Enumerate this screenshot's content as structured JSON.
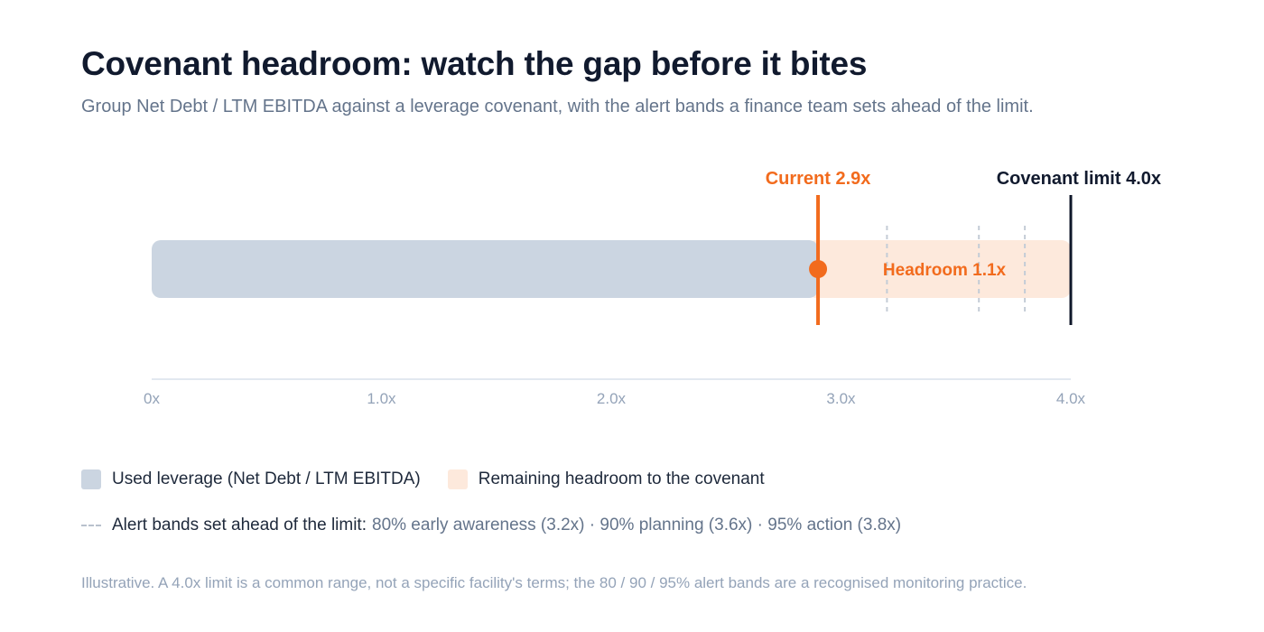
{
  "title": "Covenant headroom: watch the gap before it bites",
  "subtitle": "Group Net Debt / LTM EBITDA against a leverage covenant, with the alert bands a finance team sets ahead of the limit.",
  "chart_data": {
    "type": "bar",
    "orientation": "horizontal",
    "xlim": [
      0,
      4.0
    ],
    "x_ticks": [
      0,
      1.0,
      2.0,
      3.0,
      4.0
    ],
    "x_tick_labels": [
      "0x",
      "1.0x",
      "2.0x",
      "3.0x",
      "4.0x"
    ],
    "grid": false,
    "current": {
      "value": 2.9,
      "label": "Current 2.9x"
    },
    "limit": {
      "value": 4.0,
      "label": "Covenant limit 4.0x"
    },
    "headroom": {
      "value": 1.1,
      "label": "Headroom 1.1x"
    },
    "alert_bands": [
      3.2,
      3.6,
      3.8
    ],
    "colors": {
      "used": "#cbd5e1",
      "headroom": "#fde9dc",
      "current": "#f26b1d",
      "limit": "#0f172a",
      "band": "#c4ccd6",
      "axis": "#e2e8f0",
      "tick_text": "#94a3b8"
    }
  },
  "legend": {
    "used_label": "Used leverage (Net Debt / LTM EBITDA)",
    "headroom_label": "Remaining headroom to the covenant",
    "bands_prefix": "Alert bands set ahead of the limit:",
    "bands_detail": "80% early awareness (3.2x) · 90% planning (3.6x) · 95% action (3.8x)"
  },
  "note": "Illustrative. A 4.0x limit is a common range, not a specific facility's terms; the 80 / 90 / 95% alert bands are a recognised monitoring practice."
}
